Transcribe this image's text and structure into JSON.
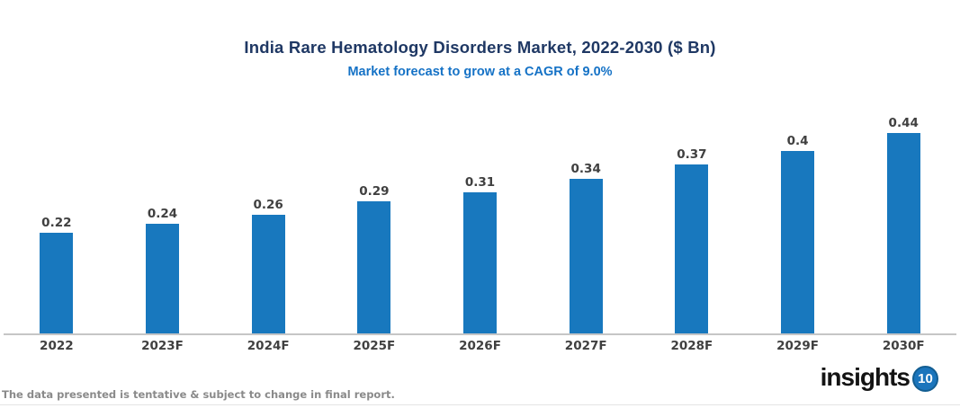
{
  "header": {
    "title": "India Rare Hematology Disorders Market, 2022-2030 ($ Bn)",
    "subtitle": "Market forecast to grow at a CAGR of 9.0%",
    "title_color": "#1F3864",
    "subtitle_color": "#1572C6"
  },
  "chart_data": {
    "type": "bar",
    "title": "India Rare Hematology Disorders Market, 2022-2030 ($ Bn)",
    "subtitle": "Market forecast to grow at a CAGR of 9.0%",
    "categories": [
      "2022",
      "2023F",
      "2024F",
      "2025F",
      "2026F",
      "2027F",
      "2028F",
      "2029F",
      "2030F"
    ],
    "values": [
      0.22,
      0.24,
      0.26,
      0.29,
      0.31,
      0.34,
      0.37,
      0.4,
      0.44
    ],
    "data_labels": [
      "0.22",
      "0.24",
      "0.26",
      "0.29",
      "0.31",
      "0.34",
      "0.37",
      "0.4",
      "0.44"
    ],
    "xlabel": "",
    "ylabel": "",
    "ylim": [
      0,
      0.47
    ],
    "grid": false,
    "legend": "none",
    "bar_color": "#1878BE",
    "value_label_color": "#404040",
    "axis_line_color": "#C6C6C6"
  },
  "footer": {
    "disclaimer": "The data presented is tentative & subject to change in final report.",
    "logo": {
      "text": "insights",
      "badge": "10",
      "badge_color": "#1B75BC"
    }
  }
}
